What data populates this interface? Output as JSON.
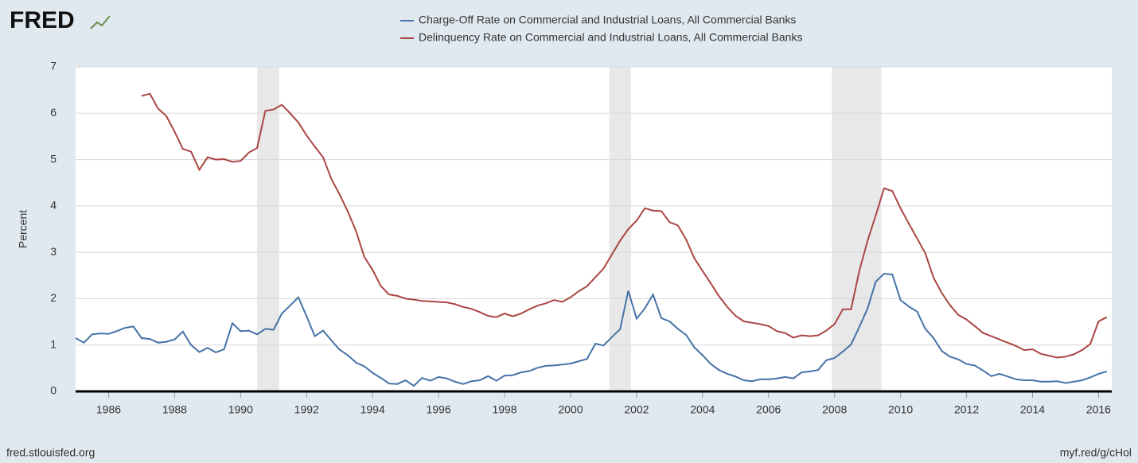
{
  "logo": "FRED",
  "footer_left": "fred.stlouisfed.org",
  "footer_right": "myf.red/g/cHol",
  "chart_data": {
    "type": "line",
    "ylabel": "Percent",
    "xlim": [
      1985,
      2016.4
    ],
    "ylim": [
      0,
      7
    ],
    "xticks": [
      1986,
      1988,
      1990,
      1992,
      1994,
      1996,
      1998,
      2000,
      2002,
      2004,
      2006,
      2008,
      2010,
      2012,
      2014,
      2016
    ],
    "yticks": [
      0,
      1,
      2,
      3,
      4,
      5,
      6,
      7
    ],
    "grid": true,
    "legend": "top",
    "recessions": [
      [
        1990.5,
        1991.17
      ],
      [
        2001.17,
        2001.83
      ],
      [
        2007.92,
        2009.42
      ]
    ],
    "x": [
      1985,
      1985.25,
      1985.5,
      1985.75,
      1986,
      1986.25,
      1986.5,
      1986.75,
      1987,
      1987.25,
      1987.5,
      1987.75,
      1988,
      1988.25,
      1988.5,
      1988.75,
      1989,
      1989.25,
      1989.5,
      1989.75,
      1990,
      1990.25,
      1990.5,
      1990.75,
      1991,
      1991.25,
      1991.5,
      1991.75,
      1992,
      1992.25,
      1992.5,
      1992.75,
      1993,
      1993.25,
      1993.5,
      1993.75,
      1994,
      1994.25,
      1994.5,
      1994.75,
      1995,
      1995.25,
      1995.5,
      1995.75,
      1996,
      1996.25,
      1996.5,
      1996.75,
      1997,
      1997.25,
      1997.5,
      1997.75,
      1998,
      1998.25,
      1998.5,
      1998.75,
      1999,
      1999.25,
      1999.5,
      1999.75,
      2000,
      2000.25,
      2000.5,
      2000.75,
      2001,
      2001.25,
      2001.5,
      2001.75,
      2002,
      2002.25,
      2002.5,
      2002.75,
      2003,
      2003.25,
      2003.5,
      2003.75,
      2004,
      2004.25,
      2004.5,
      2004.75,
      2005,
      2005.25,
      2005.5,
      2005.75,
      2006,
      2006.25,
      2006.5,
      2006.75,
      2007,
      2007.25,
      2007.5,
      2007.75,
      2008,
      2008.25,
      2008.5,
      2008.75,
      2009,
      2009.25,
      2009.5,
      2009.75,
      2010,
      2010.25,
      2010.5,
      2010.75,
      2011,
      2011.25,
      2011.5,
      2011.75,
      2012,
      2012.25,
      2012.5,
      2012.75,
      2013,
      2013.25,
      2013.5,
      2013.75,
      2014,
      2014.25,
      2014.5,
      2014.75,
      2015,
      2015.25,
      2015.5,
      2015.75,
      2016,
      2016.25
    ],
    "series": [
      {
        "name": "Charge-Off Rate on Commercial and Industrial Loans, All Commercial Banks",
        "color": "#4572a7",
        "values": [
          1.15,
          1.05,
          1.23,
          1.25,
          1.24,
          1.3,
          1.37,
          1.4,
          1.15,
          1.13,
          1.05,
          1.07,
          1.12,
          1.29,
          1.0,
          0.85,
          0.94,
          0.84,
          0.91,
          1.47,
          1.3,
          1.31,
          1.23,
          1.35,
          1.33,
          1.68,
          1.85,
          2.03,
          1.62,
          1.19,
          1.31,
          1.1,
          0.9,
          0.78,
          0.62,
          0.54,
          0.4,
          0.29,
          0.17,
          0.16,
          0.24,
          0.12,
          0.29,
          0.23,
          0.31,
          0.28,
          0.21,
          0.16,
          0.22,
          0.24,
          0.33,
          0.23,
          0.34,
          0.35,
          0.41,
          0.44,
          0.51,
          0.55,
          0.56,
          0.58,
          0.6,
          0.65,
          0.7,
          1.03,
          0.99,
          1.17,
          1.34,
          2.17,
          1.57,
          1.79,
          2.09,
          1.58,
          1.51,
          1.35,
          1.22,
          0.95,
          0.78,
          0.59,
          0.46,
          0.38,
          0.32,
          0.24,
          0.22,
          0.26,
          0.26,
          0.28,
          0.31,
          0.28,
          0.41,
          0.43,
          0.46,
          0.67,
          0.72,
          0.86,
          1.01,
          1.39,
          1.79,
          2.37,
          2.54,
          2.52,
          1.97,
          1.83,
          1.72,
          1.35,
          1.15,
          0.87,
          0.75,
          0.69,
          0.59,
          0.56,
          0.45,
          0.33,
          0.38,
          0.32,
          0.26,
          0.24,
          0.24,
          0.21,
          0.21,
          0.22,
          0.18,
          0.21,
          0.24,
          0.3,
          0.38,
          0.43
        ]
      },
      {
        "name": "Delinquency Rate on Commercial and Industrial Loans, All Commercial Banks",
        "color": "#aa4643",
        "values": [
          null,
          null,
          null,
          null,
          null,
          null,
          null,
          null,
          6.37,
          6.42,
          6.1,
          5.94,
          5.6,
          5.23,
          5.17,
          4.78,
          5.05,
          5.0,
          5.01,
          4.95,
          4.97,
          5.15,
          5.25,
          6.05,
          6.08,
          6.18,
          6.0,
          5.8,
          5.52,
          5.28,
          5.05,
          4.58,
          4.25,
          3.88,
          3.45,
          2.9,
          2.62,
          2.27,
          2.09,
          2.06,
          2.0,
          1.98,
          1.95,
          1.94,
          1.93,
          1.92,
          1.88,
          1.82,
          1.78,
          1.71,
          1.63,
          1.6,
          1.68,
          1.62,
          1.68,
          1.77,
          1.85,
          1.9,
          1.97,
          1.93,
          2.03,
          2.16,
          2.27,
          2.46,
          2.65,
          2.95,
          3.25,
          3.5,
          3.68,
          3.95,
          3.9,
          3.89,
          3.65,
          3.58,
          3.28,
          2.87,
          2.6,
          2.33,
          2.05,
          1.82,
          1.63,
          1.51,
          1.48,
          1.45,
          1.41,
          1.3,
          1.26,
          1.16,
          1.21,
          1.19,
          1.21,
          1.31,
          1.45,
          1.77,
          1.77,
          2.6,
          3.25,
          3.8,
          4.38,
          4.32,
          3.95,
          3.62,
          3.3,
          2.98,
          2.45,
          2.12,
          1.86,
          1.65,
          1.55,
          1.41,
          1.26,
          1.19,
          1.12,
          1.05,
          0.98,
          0.89,
          0.91,
          0.81,
          0.77,
          0.73,
          0.75,
          0.8,
          0.89,
          1.02,
          1.51,
          1.6
        ]
      }
    ]
  }
}
